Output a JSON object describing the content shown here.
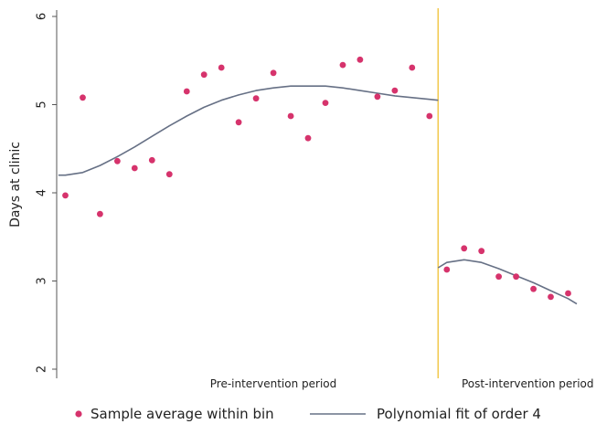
{
  "chart_data": {
    "type": "scatter",
    "title": "",
    "xlabel": "",
    "ylabel": "Days at clinic",
    "ylim": [
      2,
      6
    ],
    "yticks": [
      "2",
      "3",
      "4",
      "5",
      "6"
    ],
    "grid": false,
    "legend_position": "bottom",
    "cutoff_bin": 22.5,
    "period_labels": {
      "pre": "Pre-intervention period",
      "post": "Post-intervention period"
    },
    "series": [
      {
        "name": "Sample average within bin",
        "kind": "points",
        "color": "#d6336c",
        "x": [
          1,
          2,
          3,
          4,
          5,
          6,
          7,
          8,
          9,
          10,
          11,
          12,
          13,
          14,
          15,
          16,
          17,
          18,
          19,
          20,
          21,
          22,
          23,
          24,
          25,
          26,
          27,
          28,
          29,
          30
        ],
        "y": [
          3.97,
          5.08,
          3.76,
          4.36,
          4.28,
          4.37,
          4.21,
          5.15,
          5.34,
          5.42,
          4.8,
          5.07,
          5.36,
          4.87,
          4.62,
          5.02,
          5.45,
          5.51,
          5.09,
          5.16,
          5.42,
          4.87,
          3.13,
          3.37,
          3.34,
          3.05,
          3.05,
          2.91,
          2.82,
          2.86
        ]
      },
      {
        "name": "Polynomial fit of order 4",
        "kind": "line",
        "color": "#667085",
        "segments": [
          {
            "x": [
              0.6,
              1,
              2,
              3,
              4,
              5,
              6,
              7,
              8,
              9,
              10,
              11,
              12,
              13,
              14,
              15,
              16,
              17,
              18,
              19,
              20,
              21,
              22,
              22.5
            ],
            "y": [
              4.2,
              4.2,
              4.23,
              4.31,
              4.41,
              4.52,
              4.64,
              4.76,
              4.87,
              4.97,
              5.05,
              5.11,
              5.16,
              5.19,
              5.21,
              5.21,
              5.21,
              5.19,
              5.16,
              5.13,
              5.1,
              5.08,
              5.06,
              5.05
            ]
          },
          {
            "x": [
              22.5,
              23,
              24,
              25,
              26,
              27,
              28,
              29,
              30,
              30.5
            ],
            "y": [
              3.15,
              3.21,
              3.24,
              3.21,
              3.14,
              3.06,
              2.98,
              2.89,
              2.8,
              2.74
            ]
          }
        ]
      }
    ]
  }
}
